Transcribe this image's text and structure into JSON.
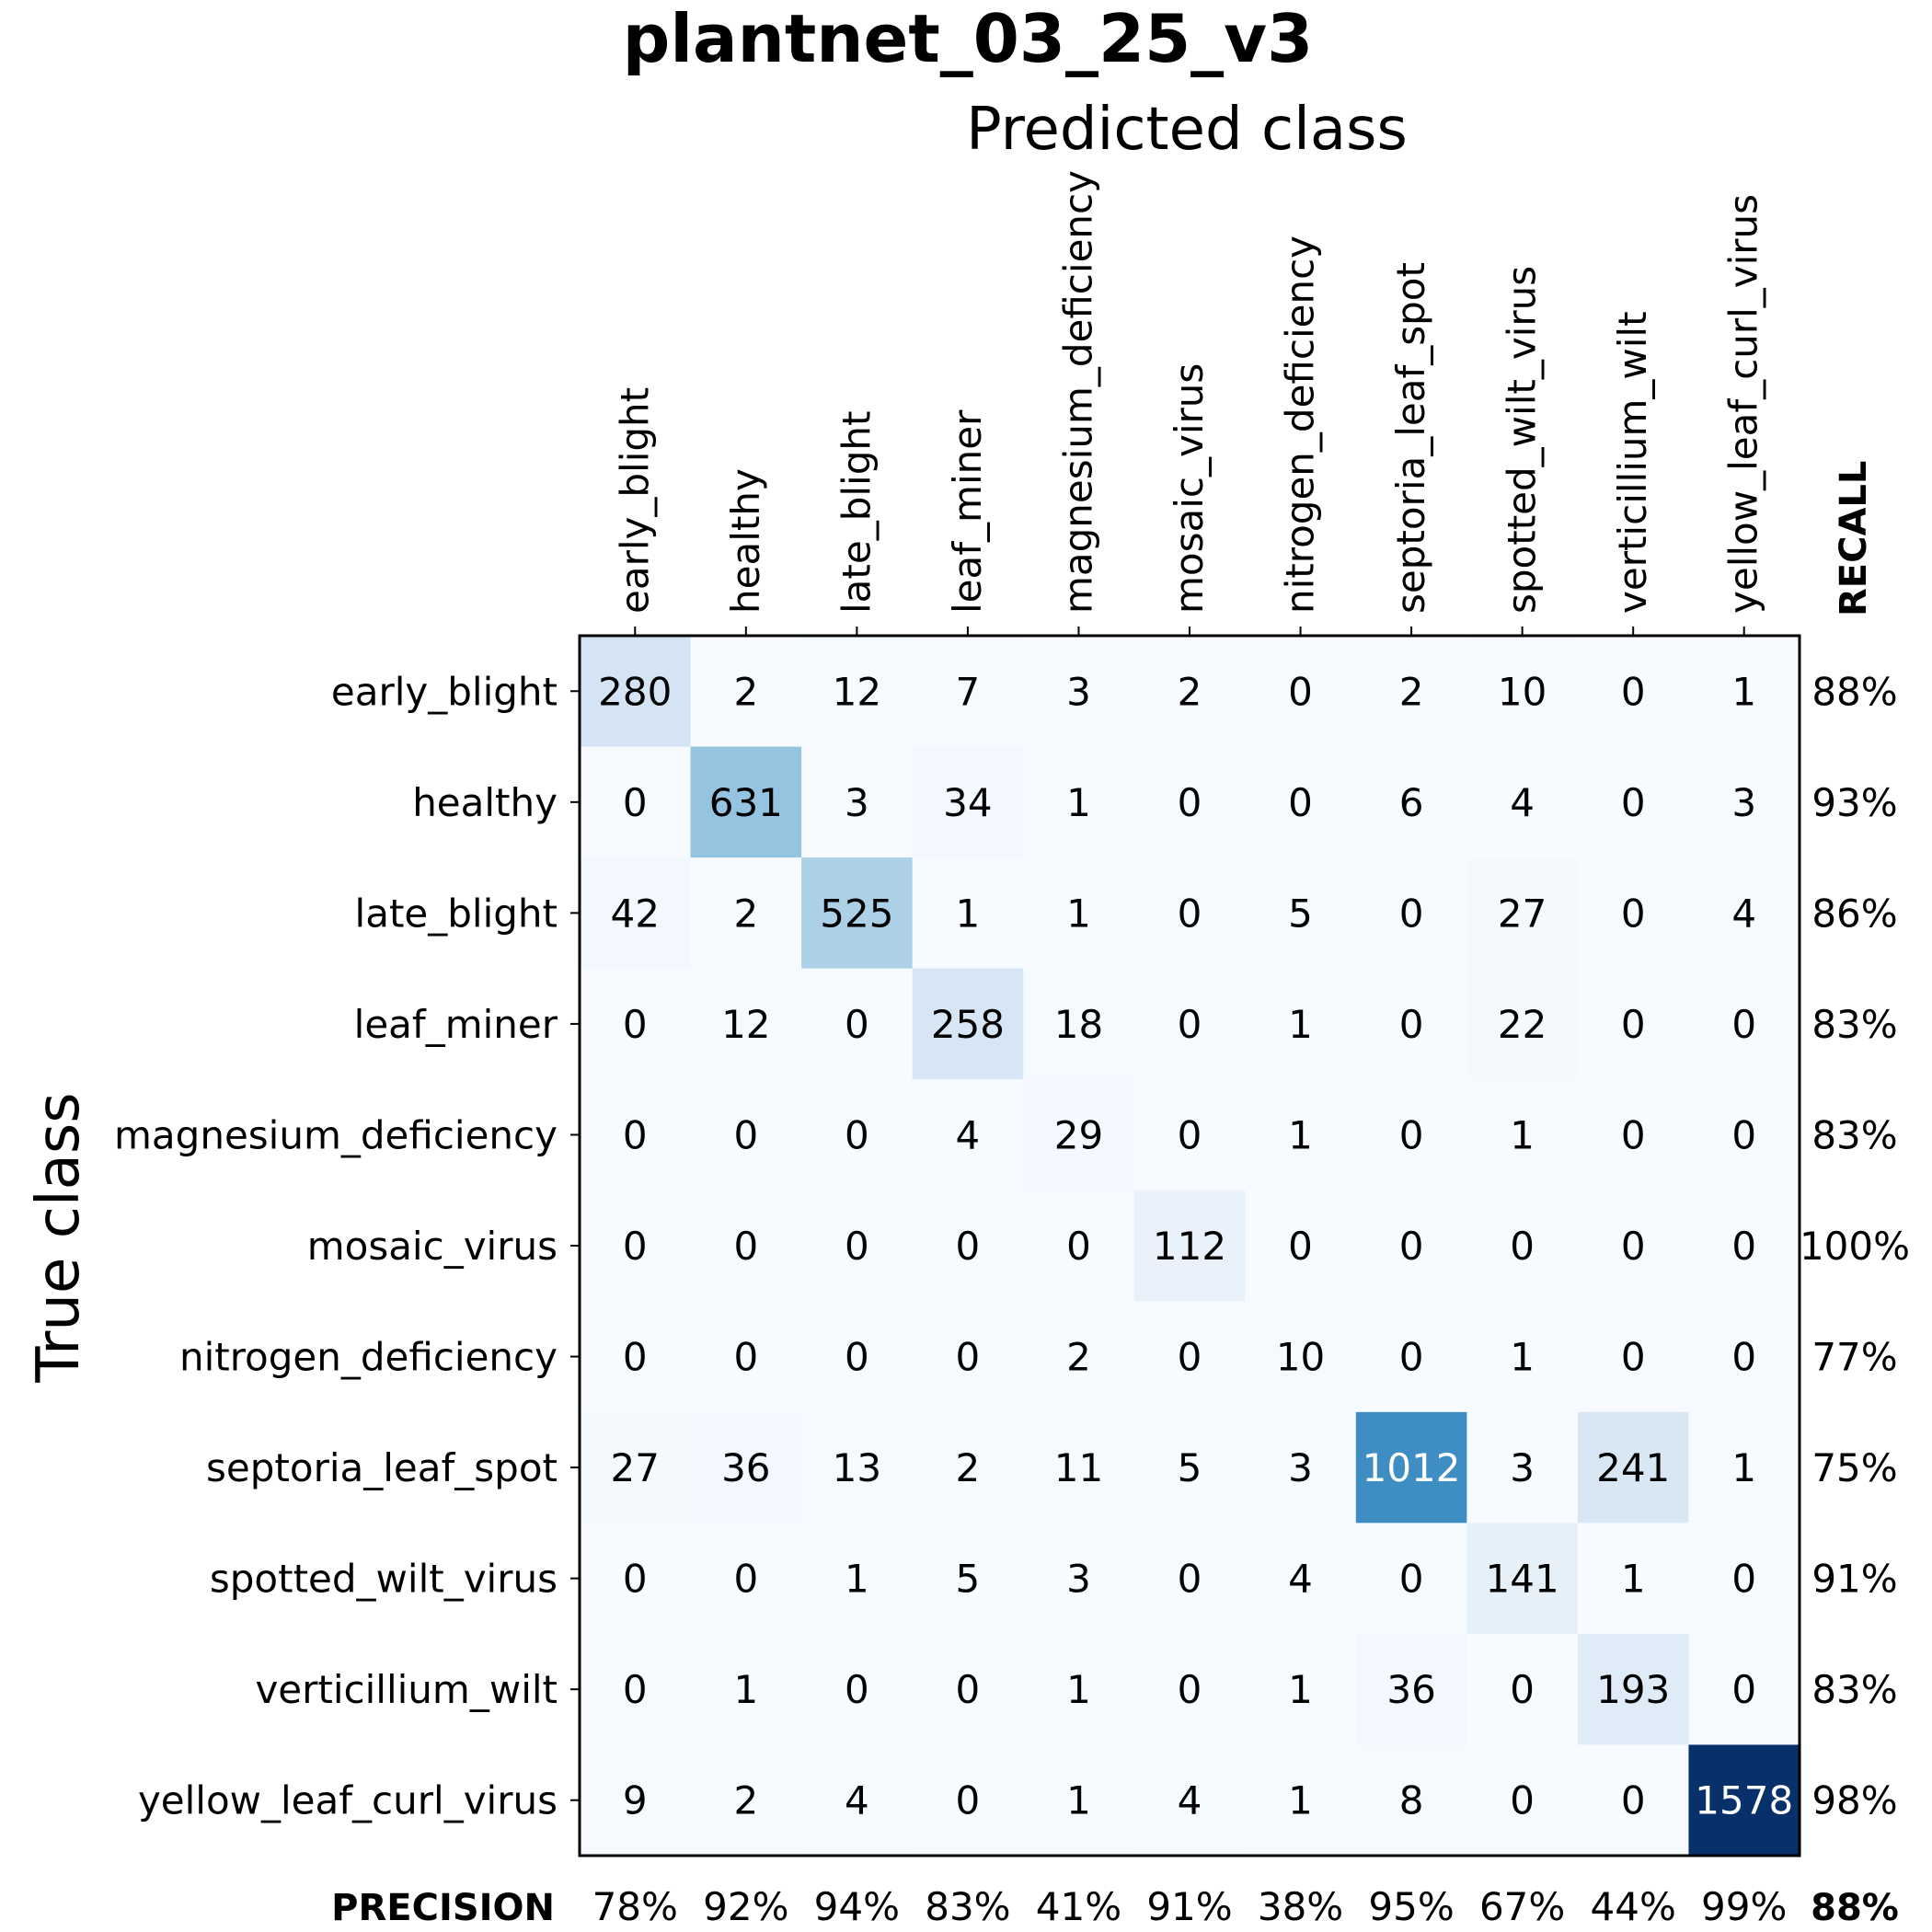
{
  "chart_data": {
    "type": "heatmap",
    "title": "plantnet_03_25_v3",
    "xlabel": "Predicted class",
    "ylabel": "True class",
    "classes": [
      "early_blight",
      "healthy",
      "late_blight",
      "leaf_miner",
      "magnesium_deficiency",
      "mosaic_virus",
      "nitrogen_deficiency",
      "septoria_leaf_spot",
      "spotted_wilt_virus",
      "verticillium_wilt",
      "yellow_leaf_curl_virus"
    ],
    "matrix": [
      [
        280,
        2,
        12,
        7,
        3,
        2,
        0,
        2,
        10,
        0,
        1
      ],
      [
        0,
        631,
        3,
        34,
        1,
        0,
        0,
        6,
        4,
        0,
        3
      ],
      [
        42,
        2,
        525,
        1,
        1,
        0,
        5,
        0,
        27,
        0,
        4
      ],
      [
        0,
        12,
        0,
        258,
        18,
        0,
        1,
        0,
        22,
        0,
        0
      ],
      [
        0,
        0,
        0,
        4,
        29,
        0,
        1,
        0,
        1,
        0,
        0
      ],
      [
        0,
        0,
        0,
        0,
        0,
        112,
        0,
        0,
        0,
        0,
        0
      ],
      [
        0,
        0,
        0,
        0,
        2,
        0,
        10,
        0,
        1,
        0,
        0
      ],
      [
        27,
        36,
        13,
        2,
        11,
        5,
        3,
        1012,
        3,
        241,
        1
      ],
      [
        0,
        0,
        1,
        5,
        3,
        0,
        4,
        0,
        141,
        1,
        0
      ],
      [
        0,
        1,
        0,
        0,
        1,
        0,
        1,
        36,
        0,
        193,
        0
      ],
      [
        9,
        2,
        4,
        0,
        1,
        4,
        1,
        8,
        0,
        0,
        1578
      ]
    ],
    "recall_label": "RECALL",
    "recall": [
      "88%",
      "93%",
      "86%",
      "83%",
      "83%",
      "100%",
      "77%",
      "75%",
      "91%",
      "83%",
      "98%"
    ],
    "precision_label": "PRECISION",
    "precision": [
      "78%",
      "92%",
      "94%",
      "83%",
      "41%",
      "91%",
      "38%",
      "95%",
      "67%",
      "44%",
      "99%"
    ],
    "overall": "88%",
    "colormap": "Blues",
    "color_max": 1578
  }
}
